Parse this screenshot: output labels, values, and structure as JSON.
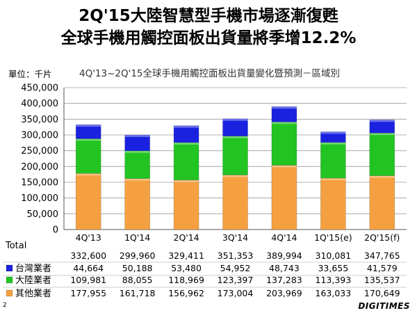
{
  "slide": {
    "title_line1": "2Q'15大陸智慧型手機市場逐漸復甦",
    "title_line2": "全球手機用觸控面板出貨量將季增12.2%",
    "unit_label": "單位：千片",
    "page_number": "2",
    "logo_text": "DIGITIMES"
  },
  "chart_data": {
    "type": "bar",
    "stacked": true,
    "title": "4Q'13~2Q'15全球手機用觸控面板出貨量變化暨預測－區域別",
    "categories": [
      "4Q'13",
      "1Q'14",
      "2Q'14",
      "3Q'14",
      "4Q'14",
      "1Q'15(e)",
      "2Q'15(f)"
    ],
    "ylim": [
      0,
      450000
    ],
    "yticks": [
      "0",
      "50,000",
      "100,000",
      "150,000",
      "200,000",
      "250,000",
      "300,000",
      "350,000",
      "400,000",
      "450,000"
    ],
    "grid": true,
    "series": [
      {
        "name": "其他業者",
        "color": "#F5A040",
        "values": [
          177955,
          161718,
          156962,
          173004,
          203969,
          163033,
          170649
        ],
        "labels": [
          "177,955",
          "161,718",
          "156,962",
          "173,004",
          "203,969",
          "163,033",
          "170,649"
        ]
      },
      {
        "name": "大陸業者",
        "color": "#22C422",
        "values": [
          109981,
          88055,
          118969,
          123397,
          137283,
          113393,
          135537
        ],
        "labels": [
          "109,981",
          "88,055",
          "118,969",
          "123,397",
          "137,283",
          "113,393",
          "135,537"
        ]
      },
      {
        "name": "台灣業者",
        "color": "#1A22E0",
        "values": [
          44664,
          50188,
          53480,
          54952,
          48743,
          33655,
          41579
        ],
        "labels": [
          "44,664",
          "50,188",
          "53,480",
          "54,952",
          "48,743",
          "33,655",
          "41,579"
        ]
      }
    ],
    "table": {
      "total_label": "Total",
      "totals": [
        "332,600",
        "299,960",
        "329,411",
        "351,353",
        "389,994",
        "310,081",
        "347,765"
      ],
      "row_order": [
        "台灣業者",
        "大陸業者",
        "其他業者"
      ]
    }
  }
}
